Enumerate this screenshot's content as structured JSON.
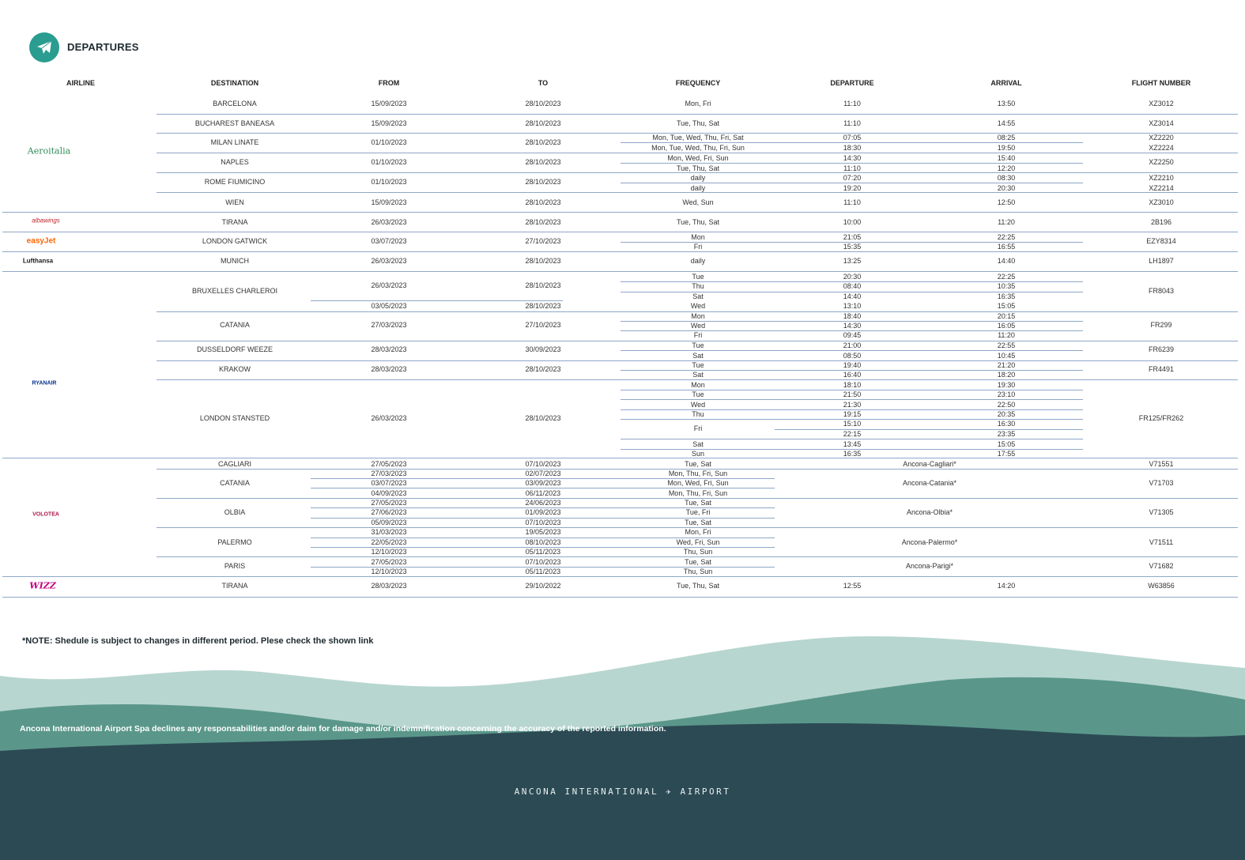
{
  "header": {
    "title": "DEPARTURES",
    "icon": "airplane-icon"
  },
  "columns": [
    "AIRLINE",
    "DESTINATION",
    "FROM",
    "TO",
    "FREQUENCY",
    "DEPARTURE",
    "ARRIVAL",
    "FLIGHT NUMBER"
  ],
  "airlines": [
    {
      "name": "Aeroitalia",
      "logo_text": "Aeroitalia",
      "color": "#2e8b57"
    },
    {
      "name": "albawings",
      "logo_text": "albawings",
      "color": "#c0262e"
    },
    {
      "name": "easyJet",
      "logo_text": "easyJet",
      "color": "#ff6600"
    },
    {
      "name": "Lufthansa",
      "logo_text": "Lufthansa",
      "color": "#1a1a1a"
    },
    {
      "name": "Ryanair",
      "logo_text": "RYANAIR",
      "color": "#073590"
    },
    {
      "name": "Volotea",
      "logo_text": "VOLOTEA",
      "color": "#b0174a"
    },
    {
      "name": "Wizz",
      "logo_text": "WIZZ",
      "color": "#c6007e"
    }
  ],
  "destinations": [
    "BARCELONA",
    "BUCHAREST BANEASA",
    "MILAN LINATE",
    "NAPLES",
    "ROME FIUMICINO",
    "WIEN",
    "TIRANA",
    "LONDON GATWICK",
    "MUNICH",
    "BRUXELLES CHARLEROI",
    "CATANIA",
    "DUSSELDORF WEEZE",
    "KRAKOW",
    "LONDON STANSTED",
    "CAGLIARI",
    "CATANIA",
    "OLBIA",
    "PALERMO",
    "PARIS",
    "TIRANA"
  ],
  "from_dates": [
    "15/09/2023",
    "15/09/2023",
    "01/10/2023",
    "01/10/2023",
    "01/10/2023",
    "15/09/2023",
    "26/03/2023",
    "03/07/2023",
    "26/03/2023",
    "26/03/2023",
    "03/05/2023",
    "27/03/2023",
    "28/03/2023",
    "28/03/2023",
    "26/03/2023",
    "27/05/2023",
    "27/03/2023",
    "03/07/2023",
    "04/09/2023",
    "27/05/2023",
    "27/06/2023",
    "05/09/2023",
    "31/03/2023",
    "22/05/2023",
    "12/10/2023",
    "27/05/2023",
    "12/10/2023",
    "28/03/2023"
  ],
  "to_dates": [
    "28/10/2023",
    "28/10/2023",
    "28/10/2023",
    "28/10/2023",
    "28/10/2023",
    "28/10/2023",
    "28/10/2023",
    "27/10/2023",
    "28/10/2023",
    "28/10/2023",
    "28/10/2023",
    "27/10/2023",
    "30/09/2023",
    "28/10/2023",
    "28/10/2023",
    "07/10/2023",
    "02/07/2023",
    "03/09/2023",
    "06/11/2023",
    "24/06/2023",
    "01/09/2023",
    "07/10/2023",
    "19/05/2023",
    "08/10/2023",
    "05/11/2023",
    "07/10/2023",
    "05/11/2023",
    "29/10/2022"
  ],
  "frequencies": [
    "Mon, Fri",
    "Tue, Thu, Sat",
    "Mon, Tue, Wed, Thu, Fri, Sat",
    "Mon, Tue, Wed, Thu, Fri, Sun",
    "Mon, Wed, Fri, Sun",
    "Tue, Thu, Sat",
    "daily",
    "daily",
    "Wed, Sun",
    "Tue, Thu, Sat",
    "Mon",
    "Fri",
    "daily",
    "Tue",
    "Thu",
    "Sat",
    "Wed",
    "Mon",
    "Wed",
    "Fri",
    "Tue",
    "Sat",
    "Tue",
    "Sat",
    "Mon",
    "Tue",
    "Wed",
    "Thu",
    "Fri",
    "Sat",
    "Sun",
    "Tue, Sat",
    "Mon, Thu, Fri, Sun",
    "Mon, Wed, Fri, Sun",
    "Mon, Thu, Fri, Sun",
    "Tue, Sat",
    "Tue, Fri",
    "Tue, Sat",
    "Mon, Fri",
    "Wed, Fri, Sun",
    "Thu, Sun",
    "Tue, Sat",
    "Thu, Sun",
    "Tue, Thu, Sat"
  ],
  "departures": [
    "11:10",
    "11:10",
    "07:05",
    "18:30",
    "14:30",
    "11:10",
    "07:20",
    "19:20",
    "11:10",
    "10:00",
    "21:05",
    "15:35",
    "13:25",
    "20:30",
    "08:40",
    "14:40",
    "13:10",
    "18:40",
    "14:30",
    "09:45",
    "21:00",
    "08:50",
    "19:40",
    "16:40",
    "18:10",
    "21:50",
    "21:30",
    "19:15",
    "15:10",
    "22:15",
    "13:45",
    "16:35",
    "12:55"
  ],
  "arrivals": [
    "13:50",
    "14:55",
    "08:25",
    "19:50",
    "15:40",
    "12:20",
    "08:30",
    "20:30",
    "12:50",
    "11:20",
    "22:25",
    "16:55",
    "14:40",
    "22:25",
    "10:35",
    "16:35",
    "15:05",
    "20:15",
    "16:05",
    "11:20",
    "22:55",
    "10:45",
    "21:20",
    "18:20",
    "19:30",
    "23:10",
    "22:50",
    "20:35",
    "16:30",
    "23:35",
    "15:05",
    "17:55",
    "14:20"
  ],
  "routes": [
    "Ancona-Cagliari*",
    "Ancona-Catania*",
    "Ancona-Olbia*",
    "Ancona-Palermo*",
    "Ancona-Parigi*"
  ],
  "flight_numbers": [
    "XZ3012",
    "XZ3014",
    "XZ2220",
    "XZ2224",
    "XZ2250",
    "XZ2210",
    "XZ2214",
    "XZ3010",
    "2B196",
    "EZY8314",
    "LH1897",
    "FR8043",
    "FR299",
    "FR6239",
    "FR4491",
    "FR125/FR262",
    "V71551",
    "V71703",
    "V71305",
    "V71511",
    "V71682",
    "W63856"
  ],
  "note": "*NOTE: Shedule is subject to changes in different period. Plese check the shown link",
  "disclaimer": "Ancona International Airport Spa declines any responsabilities and/or daim for damage and/or indemnification concerning the accuracy of the reported information.",
  "footer_brand": "ANCONA INTERNATIONAL ✈ AIRPORT",
  "colors": {
    "accent": "#2a9c90",
    "wave_light": "#b8d6d0",
    "wave_mid": "#5a978a",
    "wave_dark": "#2c4a54",
    "row_line": "#8fa7c9"
  }
}
